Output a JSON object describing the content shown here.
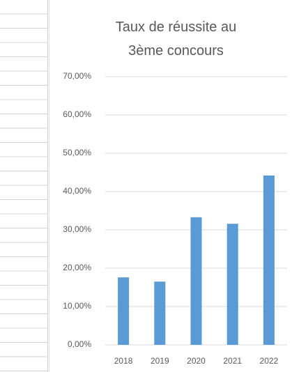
{
  "chart_data": {
    "type": "bar",
    "title": "Taux de réussite au 3ème concours",
    "categories": [
      "2018",
      "2019",
      "2020",
      "2021",
      "2022"
    ],
    "values": [
      17.6,
      16.5,
      33.3,
      31.6,
      44.2
    ],
    "color": "#5b9bd5",
    "ylim": [
      0,
      70
    ],
    "yticks": [
      {
        "value": 0,
        "label": "0,00%"
      },
      {
        "value": 10,
        "label": "10,00%"
      },
      {
        "value": 20,
        "label": "20,00%"
      },
      {
        "value": 30,
        "label": "30,00%"
      },
      {
        "value": 40,
        "label": "40,00%"
      },
      {
        "value": 50,
        "label": "50,00%"
      },
      {
        "value": 60,
        "label": "60,00%"
      },
      {
        "value": 70,
        "label": "70,00%"
      }
    ],
    "grid": true
  }
}
